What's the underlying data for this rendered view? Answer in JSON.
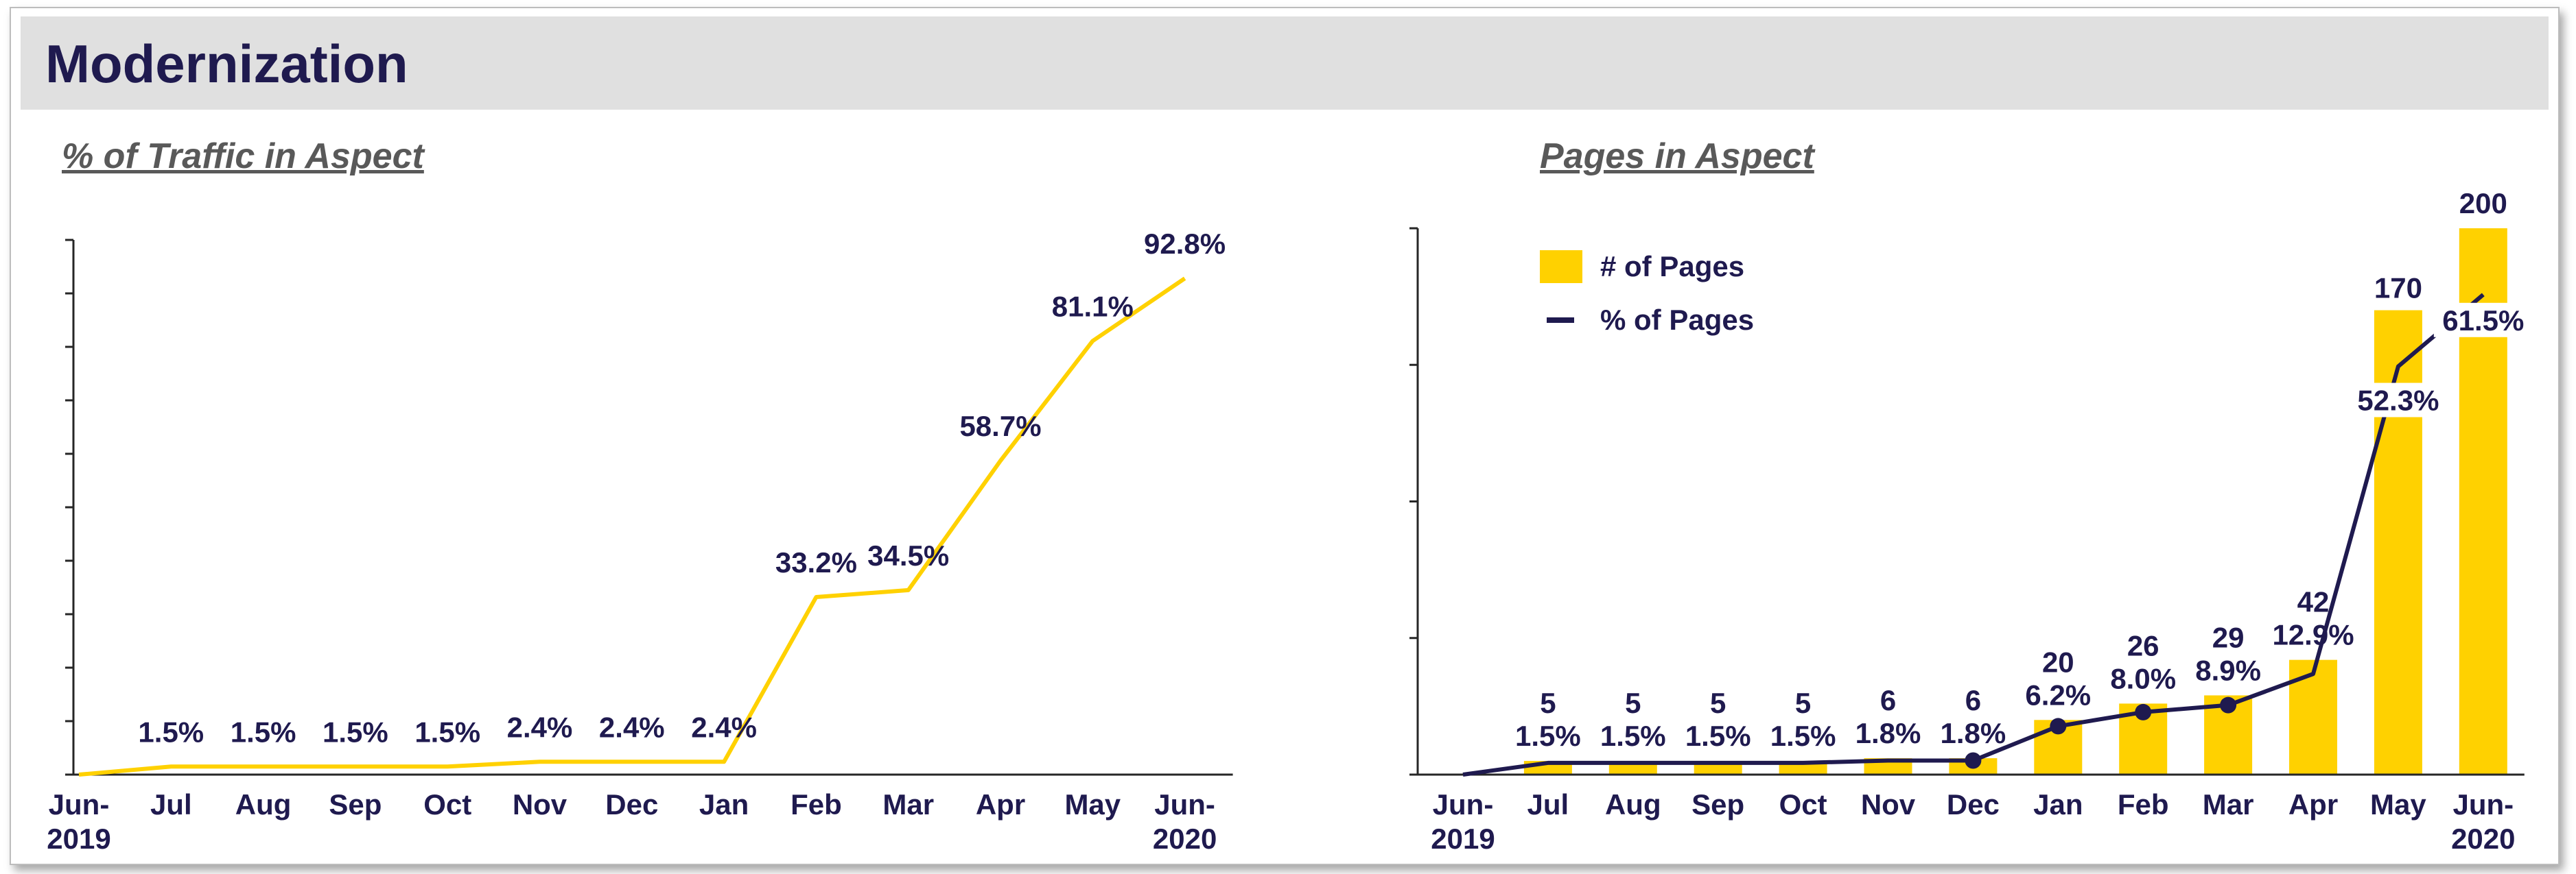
{
  "header": {
    "title": "Modernization"
  },
  "colors": {
    "accent": "#FFD100",
    "navy": "#1F1A4F",
    "axis": "#262626"
  },
  "chart_data": [
    {
      "type": "line",
      "title": "% of Traffic in Aspect",
      "x_labels": [
        [
          "Jun-",
          "2019"
        ],
        [
          "Jul"
        ],
        [
          "Aug"
        ],
        [
          "Sep"
        ],
        [
          "Oct"
        ],
        [
          "Nov"
        ],
        [
          "Dec"
        ],
        [
          "Jan"
        ],
        [
          "Feb"
        ],
        [
          "Mar"
        ],
        [
          "Apr"
        ],
        [
          "May"
        ],
        [
          "Jun-",
          "2020"
        ]
      ],
      "series": [
        {
          "values": [
            0.0,
            1.5,
            1.5,
            1.5,
            1.5,
            2.4,
            2.4,
            2.4,
            33.2,
            34.5,
            58.7,
            81.1,
            92.8
          ],
          "labels": [
            "",
            "1.5%",
            "1.5%",
            "1.5%",
            "1.5%",
            "2.4%",
            "2.4%",
            "2.4%",
            "33.2%",
            "34.5%",
            "58.7%",
            "81.1%",
            "92.8%"
          ],
          "color": "#FFD100"
        }
      ],
      "ylim": [
        0,
        100
      ],
      "y_ticks": 10,
      "grid": false
    },
    {
      "type": "bar",
      "title": "Pages in Aspect",
      "x_labels": [
        [
          "Jun-",
          "2019"
        ],
        [
          "Jul"
        ],
        [
          "Aug"
        ],
        [
          "Sep"
        ],
        [
          "Oct"
        ],
        [
          "Nov"
        ],
        [
          "Dec"
        ],
        [
          "Jan"
        ],
        [
          "Feb"
        ],
        [
          "Mar"
        ],
        [
          "Apr"
        ],
        [
          "May"
        ],
        [
          "Jun-",
          "2020"
        ]
      ],
      "series": [
        {
          "name": "# of Pages",
          "type": "bar",
          "color": "#FFD100",
          "values": [
            0,
            5,
            5,
            5,
            5,
            6,
            6,
            20,
            26,
            29,
            42,
            170,
            200
          ],
          "labels": [
            "",
            "5",
            "5",
            "5",
            "5",
            "6",
            "6",
            "20",
            "26",
            "29",
            "42",
            "170",
            "200"
          ]
        },
        {
          "name": "% of Pages",
          "type": "line",
          "color": "#1F1A4F",
          "values": [
            0.0,
            1.5,
            1.5,
            1.5,
            1.5,
            1.8,
            1.8,
            6.2,
            8.0,
            8.9,
            12.9,
            52.3,
            61.5
          ],
          "labels": [
            "",
            "1.5%",
            "1.5%",
            "1.5%",
            "1.5%",
            "1.8%",
            "1.8%",
            "6.2%",
            "8.0%",
            "8.9%",
            "12.9%",
            "52.3%",
            "61.5%"
          ],
          "markers_at": [
            6,
            7,
            8,
            9
          ]
        }
      ],
      "ylim": [
        0,
        200
      ],
      "y2lim": [
        0,
        70
      ],
      "y_ticks": 4,
      "legend_position": "top-left",
      "grid": false
    }
  ]
}
